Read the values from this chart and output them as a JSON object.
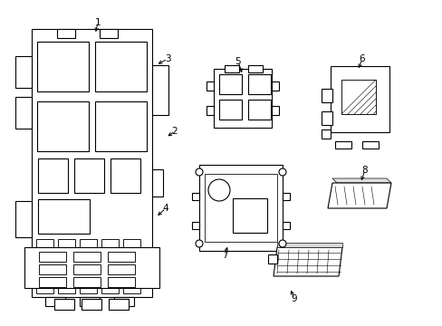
{
  "background_color": "#ffffff",
  "line_color": "#000000",
  "gray_color": "#aaaaaa",
  "fig_width": 4.89,
  "fig_height": 3.6,
  "dpi": 100
}
